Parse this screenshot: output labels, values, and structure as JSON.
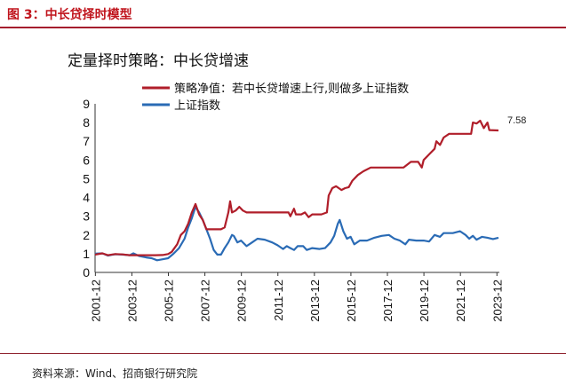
{
  "figure": {
    "heading": "图 3：中长贷择时模型",
    "source": "资料来源：Wind、招商银行研究院"
  },
  "colors": {
    "accent": "#c0141c",
    "series1": "#b01e2a",
    "series2": "#2a6bb5"
  },
  "chart_data": {
    "type": "line",
    "title": "定量择时策略：中长贷增速",
    "xlabel": "",
    "ylabel": "",
    "xlim": [
      2001.9,
      2024.05
    ],
    "ylim": [
      0,
      9
    ],
    "yticks": [
      0,
      1,
      2,
      3,
      4,
      5,
      6,
      7,
      8,
      9
    ],
    "xticks": [
      "2001-12",
      "2003-12",
      "2005-12",
      "2007-12",
      "2009-12",
      "2011-12",
      "2013-12",
      "2015-12",
      "2017-12",
      "2019-12",
      "2021-12",
      "2023-12"
    ],
    "grid": false,
    "legend": "top",
    "annotations": [
      {
        "text": "7.58",
        "x": 2024.0,
        "y": 7.58
      }
    ],
    "series": [
      {
        "name": "策略净值：若中长贷增速上行,则做多上证指数",
        "color": "#b01e2a",
        "points": [
          [
            2001.9,
            0.95
          ],
          [
            2002.3,
            1.02
          ],
          [
            2002.6,
            0.92
          ],
          [
            2003.0,
            0.98
          ],
          [
            2003.4,
            0.96
          ],
          [
            2003.8,
            0.92
          ],
          [
            2004.2,
            0.92
          ],
          [
            2004.7,
            0.92
          ],
          [
            2005.2,
            0.92
          ],
          [
            2005.6,
            0.93
          ],
          [
            2005.9,
            0.98
          ],
          [
            2006.1,
            1.1
          ],
          [
            2006.4,
            1.5
          ],
          [
            2006.6,
            2.0
          ],
          [
            2006.8,
            2.2
          ],
          [
            2007.0,
            2.6
          ],
          [
            2007.2,
            3.2
          ],
          [
            2007.4,
            3.65
          ],
          [
            2007.6,
            3.1
          ],
          [
            2007.8,
            2.8
          ],
          [
            2008.0,
            2.3
          ],
          [
            2008.4,
            2.3
          ],
          [
            2008.8,
            2.3
          ],
          [
            2009.0,
            2.4
          ],
          [
            2009.2,
            3.2
          ],
          [
            2009.3,
            3.8
          ],
          [
            2009.4,
            3.2
          ],
          [
            2009.6,
            3.3
          ],
          [
            2009.8,
            3.5
          ],
          [
            2010.0,
            3.3
          ],
          [
            2010.2,
            3.2
          ],
          [
            2011.0,
            3.2
          ],
          [
            2012.0,
            3.2
          ],
          [
            2012.5,
            3.2
          ],
          [
            2012.6,
            3.0
          ],
          [
            2012.8,
            3.4
          ],
          [
            2012.9,
            3.1
          ],
          [
            2013.2,
            3.1
          ],
          [
            2013.4,
            3.2
          ],
          [
            2013.6,
            2.95
          ],
          [
            2013.8,
            3.1
          ],
          [
            2014.3,
            3.1
          ],
          [
            2014.6,
            3.2
          ],
          [
            2014.7,
            4.1
          ],
          [
            2014.9,
            4.5
          ],
          [
            2015.1,
            4.6
          ],
          [
            2015.4,
            4.4
          ],
          [
            2015.6,
            4.5
          ],
          [
            2015.8,
            4.55
          ],
          [
            2016.0,
            4.9
          ],
          [
            2016.3,
            5.2
          ],
          [
            2016.6,
            5.4
          ],
          [
            2017.0,
            5.6
          ],
          [
            2017.5,
            5.6
          ],
          [
            2018.0,
            5.6
          ],
          [
            2018.5,
            5.6
          ],
          [
            2018.8,
            5.6
          ],
          [
            2019.2,
            5.9
          ],
          [
            2019.6,
            5.9
          ],
          [
            2019.8,
            5.6
          ],
          [
            2019.9,
            6.0
          ],
          [
            2020.2,
            6.3
          ],
          [
            2020.5,
            6.6
          ],
          [
            2020.6,
            7.0
          ],
          [
            2020.8,
            6.8
          ],
          [
            2021.0,
            7.2
          ],
          [
            2021.3,
            7.4
          ],
          [
            2021.8,
            7.4
          ],
          [
            2022.3,
            7.4
          ],
          [
            2022.5,
            7.4
          ],
          [
            2022.6,
            8.0
          ],
          [
            2022.8,
            7.95
          ],
          [
            2023.0,
            8.1
          ],
          [
            2023.2,
            7.7
          ],
          [
            2023.4,
            8.0
          ],
          [
            2023.5,
            7.6
          ],
          [
            2024.0,
            7.58
          ]
        ]
      },
      {
        "name": "上证指数",
        "color": "#2a6bb5",
        "points": [
          [
            2001.9,
            1.0
          ],
          [
            2002.3,
            1.02
          ],
          [
            2002.6,
            0.9
          ],
          [
            2003.0,
            0.97
          ],
          [
            2003.4,
            0.95
          ],
          [
            2003.8,
            0.92
          ],
          [
            2004.0,
            1.02
          ],
          [
            2004.3,
            0.88
          ],
          [
            2004.7,
            0.8
          ],
          [
            2005.0,
            0.76
          ],
          [
            2005.3,
            0.65
          ],
          [
            2005.6,
            0.7
          ],
          [
            2005.9,
            0.76
          ],
          [
            2006.2,
            1.0
          ],
          [
            2006.5,
            1.3
          ],
          [
            2006.8,
            1.8
          ],
          [
            2007.0,
            2.4
          ],
          [
            2007.2,
            2.9
          ],
          [
            2007.4,
            3.5
          ],
          [
            2007.6,
            3.2
          ],
          [
            2007.8,
            2.8
          ],
          [
            2008.0,
            2.3
          ],
          [
            2008.2,
            1.8
          ],
          [
            2008.4,
            1.2
          ],
          [
            2008.6,
            0.95
          ],
          [
            2008.8,
            0.95
          ],
          [
            2009.0,
            1.3
          ],
          [
            2009.2,
            1.6
          ],
          [
            2009.4,
            2.0
          ],
          [
            2009.5,
            1.95
          ],
          [
            2009.7,
            1.6
          ],
          [
            2009.9,
            1.7
          ],
          [
            2010.2,
            1.4
          ],
          [
            2010.5,
            1.6
          ],
          [
            2010.8,
            1.8
          ],
          [
            2011.2,
            1.75
          ],
          [
            2011.6,
            1.6
          ],
          [
            2011.9,
            1.45
          ],
          [
            2012.2,
            1.25
          ],
          [
            2012.4,
            1.4
          ],
          [
            2012.6,
            1.3
          ],
          [
            2012.8,
            1.2
          ],
          [
            2013.0,
            1.4
          ],
          [
            2013.3,
            1.4
          ],
          [
            2013.5,
            1.2
          ],
          [
            2013.8,
            1.3
          ],
          [
            2014.2,
            1.25
          ],
          [
            2014.5,
            1.3
          ],
          [
            2014.8,
            1.6
          ],
          [
            2015.0,
            1.95
          ],
          [
            2015.2,
            2.6
          ],
          [
            2015.3,
            2.8
          ],
          [
            2015.5,
            2.2
          ],
          [
            2015.7,
            1.8
          ],
          [
            2015.9,
            1.9
          ],
          [
            2016.1,
            1.5
          ],
          [
            2016.4,
            1.7
          ],
          [
            2016.8,
            1.7
          ],
          [
            2017.2,
            1.85
          ],
          [
            2017.6,
            1.95
          ],
          [
            2018.0,
            2.0
          ],
          [
            2018.3,
            1.8
          ],
          [
            2018.6,
            1.7
          ],
          [
            2018.9,
            1.5
          ],
          [
            2019.1,
            1.75
          ],
          [
            2019.5,
            1.7
          ],
          [
            2019.9,
            1.7
          ],
          [
            2020.2,
            1.65
          ],
          [
            2020.5,
            2.0
          ],
          [
            2020.8,
            1.9
          ],
          [
            2021.0,
            2.1
          ],
          [
            2021.5,
            2.1
          ],
          [
            2021.9,
            2.2
          ],
          [
            2022.2,
            2.0
          ],
          [
            2022.4,
            1.8
          ],
          [
            2022.6,
            1.95
          ],
          [
            2022.8,
            1.75
          ],
          [
            2023.1,
            1.9
          ],
          [
            2023.4,
            1.85
          ],
          [
            2023.7,
            1.78
          ],
          [
            2024.0,
            1.85
          ]
        ]
      }
    ]
  }
}
